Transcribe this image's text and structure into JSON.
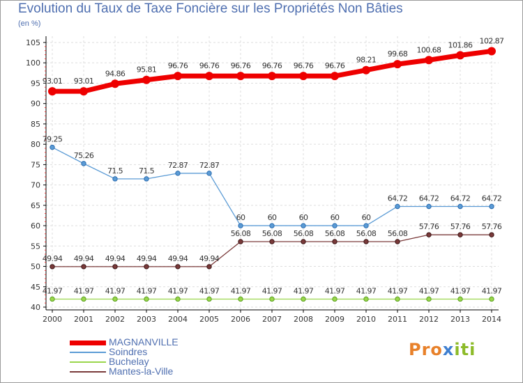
{
  "header": {
    "title": "Evolution du Taux de Taxe Foncière sur les Propriétés Non Bâties",
    "unit": "(en %)"
  },
  "chart_data": {
    "type": "line",
    "title": "Evolution du Taux de Taxe Foncière sur les Propriétés Non Bâties",
    "ylabel": "(en %)",
    "xlabel": "",
    "x": [
      2000,
      2001,
      2002,
      2003,
      2004,
      2005,
      2006,
      2007,
      2008,
      2009,
      2010,
      2011,
      2012,
      2013,
      2014
    ],
    "x_labels": [
      "2000",
      "2001",
      "2002",
      "2003",
      "2004",
      "2005",
      "2006",
      "2007",
      "2008",
      "2009",
      "2010",
      "2011",
      "2012",
      "2013",
      "2014"
    ],
    "ylim": [
      40,
      105
    ],
    "yticks": [
      40,
      45,
      50,
      55,
      60,
      65,
      70,
      75,
      80,
      85,
      90,
      95,
      100,
      105
    ],
    "ytick_labels": [
      "40",
      "45",
      "50",
      "55",
      "60",
      "65",
      "70",
      "75",
      "80",
      "85",
      "90",
      "95",
      "100",
      "105"
    ],
    "grid": true,
    "legend_position": "bottom-left",
    "series": [
      {
        "name": "MAGNANVILLE",
        "color": "#ee0000",
        "values": [
          93.01,
          93.01,
          94.86,
          95.81,
          96.76,
          96.76,
          96.76,
          96.76,
          96.76,
          96.76,
          98.21,
          99.68,
          100.68,
          101.86,
          102.87
        ],
        "labels": [
          "93.01",
          "93.01",
          "94.86",
          "95.81",
          "96.76",
          "96.76",
          "96.76",
          "96.76",
          "96.76",
          "96.76",
          "98.21",
          "99.68",
          "100.68",
          "101.86",
          "102.87"
        ]
      },
      {
        "name": "Soindres",
        "color": "#5b9bd5",
        "values": [
          79.25,
          75.26,
          71.5,
          71.5,
          72.87,
          72.87,
          60,
          60,
          60,
          60,
          60,
          64.72,
          64.72,
          64.72,
          64.72
        ],
        "labels": [
          "79.25",
          "75.26",
          "71.5",
          "71.5",
          "72.87",
          "72.87",
          "60",
          "60",
          "60",
          "60",
          "60",
          "64.72",
          "64.72",
          "64.72",
          "64.72"
        ]
      },
      {
        "name": "Buchelay",
        "color": "#9ad64b",
        "values": [
          41.97,
          41.97,
          41.97,
          41.97,
          41.97,
          41.97,
          41.97,
          41.97,
          41.97,
          41.97,
          41.97,
          41.97,
          41.97,
          41.97,
          41.97
        ],
        "labels": [
          "41.97",
          "41.97",
          "41.97",
          "41.97",
          "41.97",
          "41.97",
          "41.97",
          "41.97",
          "41.97",
          "41.97",
          "41.97",
          "41.97",
          "41.97",
          "41.97",
          "41.97"
        ]
      },
      {
        "name": "Mantes-la-Ville",
        "color": "#7a3a3a",
        "values": [
          49.94,
          49.94,
          49.94,
          49.94,
          49.94,
          49.94,
          56.08,
          56.08,
          56.08,
          56.08,
          56.08,
          56.08,
          57.76,
          57.76,
          57.76
        ],
        "labels": [
          "49.94",
          "49.94",
          "49.94",
          "49.94",
          "49.94",
          "49.94",
          "56.08",
          "56.08",
          "56.08",
          "56.08",
          "56.08",
          "56.08",
          "57.76",
          "57.76",
          "57.76"
        ]
      }
    ]
  },
  "legend": {
    "items": [
      {
        "label": "MAGNANVILLE",
        "color": "#ee0000"
      },
      {
        "label": "Soindres",
        "color": "#5b9bd5"
      },
      {
        "label": "Buchelay",
        "color": "#9ad64b"
      },
      {
        "label": "Mantes-la-Ville",
        "color": "#7a3a3a"
      }
    ]
  },
  "logo": {
    "text": "Proxiti",
    "part1": "Pro",
    "part2": "x",
    "part3": "iti"
  }
}
